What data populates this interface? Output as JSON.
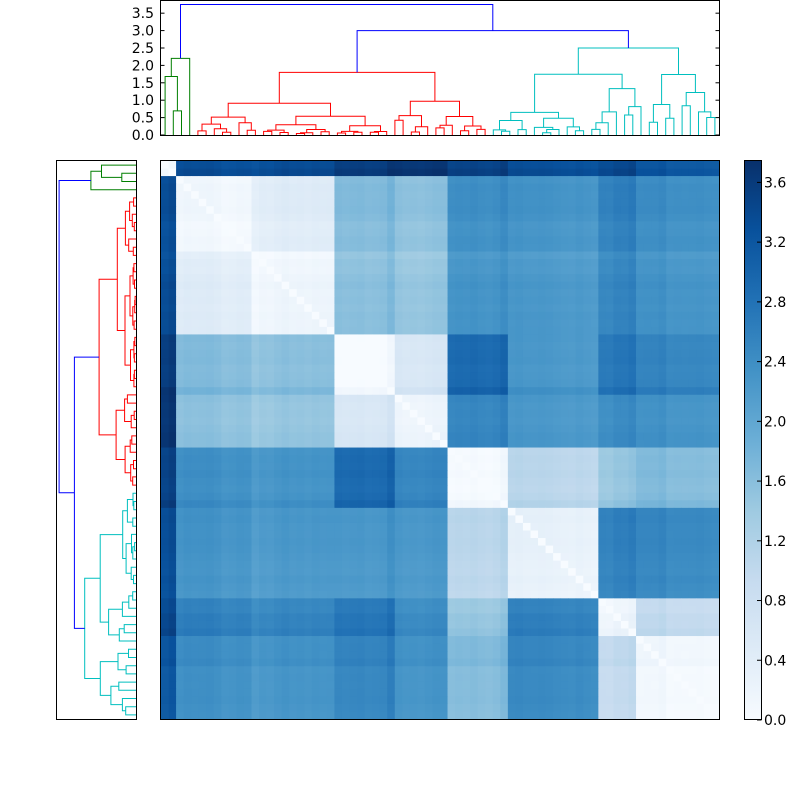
{
  "chart_data": [
    {
      "type": "dendrogram",
      "orientation": "top",
      "yticks": [
        "0.0",
        "0.5",
        "1.0",
        "1.5",
        "2.0",
        "2.5",
        "3.0",
        "3.5"
      ],
      "ylim": [
        0,
        3.85
      ],
      "cluster_colors": {
        "green": "#007f00",
        "red": "#ff0000",
        "cyan": "#00bfbf",
        "root": "#0000ff"
      },
      "clusters": [
        {
          "name": "green",
          "leaves": 4,
          "merge_height": 2.2
        },
        {
          "name": "red",
          "leaves": 36,
          "merge_height": 1.8
        },
        {
          "name": "cyan",
          "leaves": 28,
          "merge_height": 2.5
        }
      ],
      "root_merges": [
        {
          "left": "red",
          "right": "cyan",
          "height": 3.0
        },
        {
          "left": "green",
          "right": "red+cyan",
          "height": 3.75
        }
      ]
    },
    {
      "type": "dendrogram",
      "orientation": "left",
      "note_ref": "same tree as top dendrogram, leaves reordered"
    },
    {
      "type": "heatmap",
      "colormap": "Blues",
      "vmin": 0.0,
      "vmax": 3.75,
      "block_sizes": [
        2,
        10,
        11,
        8,
        7,
        8,
        12,
        5,
        11
      ],
      "block_distance_matrix": [
        [
          0.05,
          3.3,
          3.3,
          3.6,
          3.6,
          3.5,
          3.3,
          3.4,
          3.2
        ],
        [
          3.3,
          0.1,
          0.4,
          1.7,
          1.5,
          2.4,
          2.3,
          2.6,
          2.4
        ],
        [
          3.3,
          0.4,
          0.1,
          1.6,
          1.4,
          2.3,
          2.2,
          2.5,
          2.3
        ],
        [
          3.6,
          1.7,
          1.6,
          0.1,
          0.6,
          3.0,
          2.3,
          2.8,
          2.6
        ],
        [
          3.6,
          1.5,
          1.4,
          0.6,
          0.1,
          2.5,
          2.2,
          2.4,
          2.3
        ],
        [
          3.5,
          2.4,
          2.3,
          3.0,
          2.5,
          0.1,
          1.1,
          1.5,
          1.7
        ],
        [
          3.3,
          2.3,
          2.2,
          2.3,
          2.2,
          1.1,
          0.3,
          2.6,
          2.5
        ],
        [
          3.4,
          2.6,
          2.5,
          2.8,
          2.4,
          1.5,
          2.6,
          0.2,
          1.0
        ],
        [
          3.2,
          2.4,
          2.3,
          2.6,
          2.3,
          1.7,
          2.5,
          1.0,
          0.15
        ]
      ]
    },
    {
      "type": "colorbar",
      "ticks": [
        "0.0",
        "0.4",
        "0.8",
        "1.2",
        "1.6",
        "2.0",
        "2.4",
        "2.8",
        "3.2",
        "3.6"
      ],
      "tick_values": [
        0.0,
        0.4,
        0.8,
        1.2,
        1.6,
        2.0,
        2.4,
        2.8,
        3.2,
        3.6
      ],
      "range": [
        0.0,
        3.75
      ]
    }
  ]
}
